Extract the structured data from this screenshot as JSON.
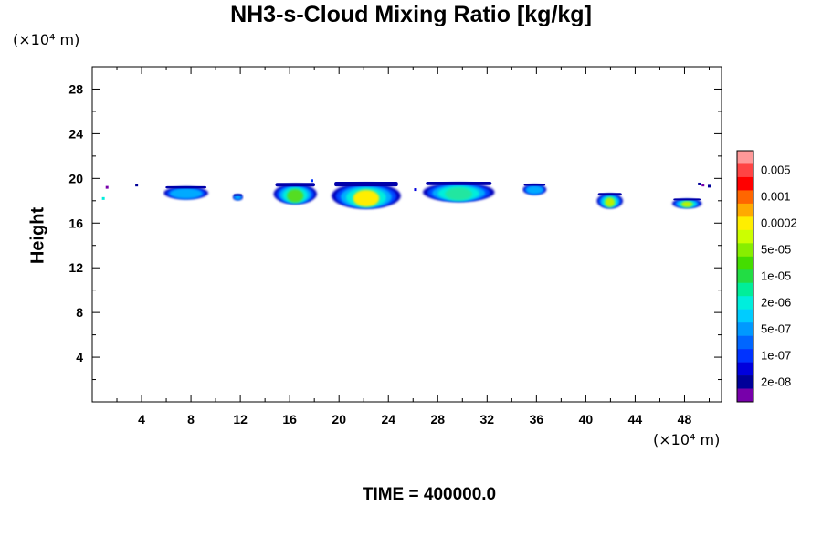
{
  "chart_data": {
    "type": "heatmap",
    "title": "NH3-s-Cloud Mixing Ratio [kg/kg]",
    "ylabel": "Height",
    "xlabel": "",
    "x_unit": "(×10⁴ m)",
    "y_unit": "(×10⁴ m)",
    "footer": "TIME = 400000.0",
    "xlim": [
      0,
      51
    ],
    "ylim": [
      0,
      30
    ],
    "x_ticks": [
      4,
      8,
      12,
      16,
      20,
      24,
      28,
      32,
      36,
      40,
      44,
      48
    ],
    "y_ticks": [
      4,
      8,
      12,
      16,
      20,
      24,
      28
    ],
    "grid": false,
    "colorbar": {
      "labels": [
        "0.005",
        "0.001",
        "0.0002",
        "5e-05",
        "1e-05",
        "2e-06",
        "5e-07",
        "1e-07",
        "2e-08"
      ],
      "colors": [
        "#ff9999",
        "#ff4444",
        "#ff0000",
        "#ff6600",
        "#ffaa00",
        "#ffee00",
        "#ccff00",
        "#88ee00",
        "#44dd00",
        "#22dd44",
        "#00ee99",
        "#00eedd",
        "#00ccff",
        "#0099ff",
        "#0066ff",
        "#0033ff",
        "#0000dd",
        "#000099",
        "#7700aa"
      ]
    },
    "regions": [
      {
        "x": [
          5.8,
          9.4
        ],
        "y": [
          18.2,
          19.3
        ],
        "peak": "5e-07"
      },
      {
        "x": [
          11.4,
          12.2
        ],
        "y": [
          18.1,
          18.6
        ],
        "peak": "5e-07"
      },
      {
        "x": [
          14.7,
          18.2
        ],
        "y": [
          17.8,
          19.6
        ],
        "peak": "1e-05"
      },
      {
        "x": [
          19.4,
          25.0
        ],
        "y": [
          17.4,
          19.7
        ],
        "peak": "0.0002"
      },
      {
        "x": [
          26.8,
          32.6
        ],
        "y": [
          18.0,
          19.7
        ],
        "peak": "2e-06"
      },
      {
        "x": [
          34.9,
          36.8
        ],
        "y": [
          18.6,
          19.5
        ],
        "peak": "1e-07"
      },
      {
        "x": [
          40.9,
          43.0
        ],
        "y": [
          17.4,
          18.7
        ],
        "peak": "5e-05"
      },
      {
        "x": [
          47.0,
          49.4
        ],
        "y": [
          17.4,
          18.2
        ],
        "peak": "5e-05"
      }
    ]
  }
}
